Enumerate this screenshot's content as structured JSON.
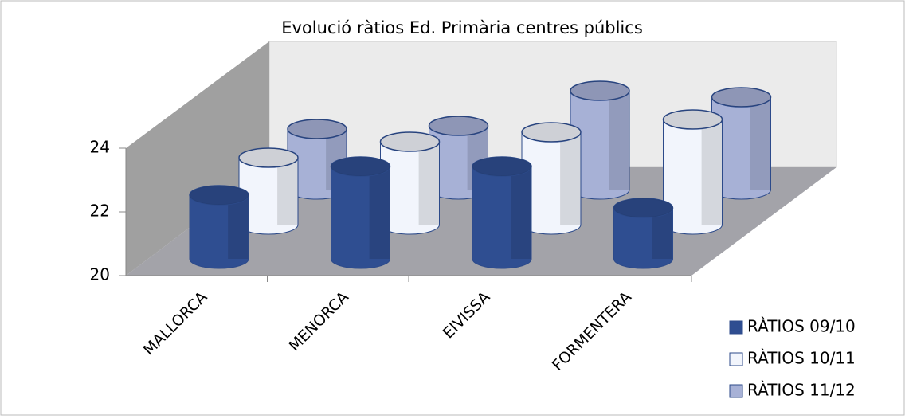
{
  "chart_data": {
    "type": "bar3d",
    "title": "Evolució ràtios Ed. Primària centres públics",
    "categories": [
      "MALLORCA",
      "MENORCA",
      "EIVISSA",
      "FORMENTERA"
    ],
    "series": [
      {
        "name": "RÀTIOS 09/10",
        "color": "#2f4e91",
        "values": [
          22.0,
          22.9,
          22.9,
          21.6
        ]
      },
      {
        "name": "RÀTIOS 10/11",
        "color": "#f2f5fc",
        "values": [
          22.1,
          22.6,
          22.9,
          23.3
        ]
      },
      {
        "name": "RÀTIOS 11/12",
        "color": "#a7b1d6",
        "values": [
          21.9,
          22.0,
          23.1,
          22.9
        ]
      }
    ],
    "ylim": [
      20,
      24
    ],
    "yticks": [
      20,
      22,
      24
    ],
    "legend": "right"
  }
}
